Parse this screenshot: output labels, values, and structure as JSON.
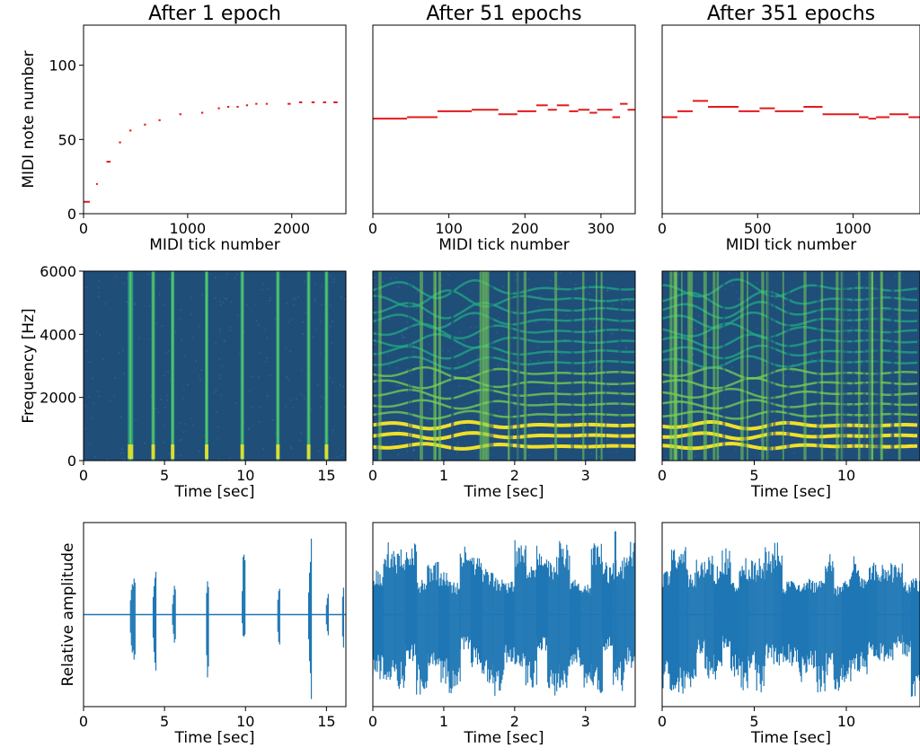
{
  "colors": {
    "note": "#e31a1c",
    "waveform": "#1f77b4",
    "spec_bg": "#1f4e79",
    "spec_mid": "#22a884",
    "spec_hi": "#fde725"
  },
  "chart_data": [
    {
      "type": "scatter",
      "panel": "midi-1-epoch",
      "title": "After 1 epoch",
      "xlabel": "MIDI tick number",
      "ylabel": "MIDI note number",
      "xlim": [
        0,
        2520
      ],
      "ylim": [
        0,
        127
      ],
      "xticks": [
        0,
        1000,
        2000
      ],
      "yticks": [
        0,
        50,
        100
      ],
      "notes": [
        [
          0,
          60,
          8
        ],
        [
          120,
          135,
          20
        ],
        [
          220,
          260,
          35
        ],
        [
          340,
          360,
          48
        ],
        [
          440,
          460,
          56
        ],
        [
          580,
          600,
          60
        ],
        [
          720,
          740,
          63
        ],
        [
          920,
          940,
          67
        ],
        [
          1130,
          1150,
          68
        ],
        [
          1290,
          1310,
          71
        ],
        [
          1380,
          1400,
          72
        ],
        [
          1470,
          1490,
          72
        ],
        [
          1560,
          1580,
          73
        ],
        [
          1650,
          1670,
          74
        ],
        [
          1750,
          1770,
          74
        ],
        [
          1960,
          1990,
          74
        ],
        [
          2070,
          2100,
          75
        ],
        [
          2190,
          2220,
          75
        ],
        [
          2300,
          2330,
          75
        ],
        [
          2400,
          2440,
          75
        ]
      ]
    },
    {
      "type": "scatter",
      "panel": "midi-51-epochs",
      "title": "After 51 epochs",
      "xlabel": "MIDI tick number",
      "ylabel": "",
      "xlim": [
        0,
        345
      ],
      "ylim": [
        0,
        127
      ],
      "xticks": [
        0,
        100,
        200,
        300
      ],
      "yticks": [],
      "notes": [
        [
          0,
          45,
          64
        ],
        [
          45,
          85,
          65
        ],
        [
          85,
          130,
          69
        ],
        [
          130,
          165,
          70
        ],
        [
          165,
          190,
          67
        ],
        [
          190,
          215,
          69
        ],
        [
          215,
          230,
          73
        ],
        [
          230,
          242,
          70
        ],
        [
          242,
          258,
          73
        ],
        [
          258,
          270,
          69
        ],
        [
          270,
          285,
          70
        ],
        [
          285,
          295,
          68
        ],
        [
          295,
          315,
          70
        ],
        [
          315,
          325,
          65
        ],
        [
          325,
          335,
          74
        ],
        [
          335,
          345,
          70
        ]
      ]
    },
    {
      "type": "scatter",
      "panel": "midi-351-epochs",
      "title": "After 351 epochs",
      "xlabel": "MIDI tick number",
      "ylabel": "",
      "xlim": [
        0,
        1350
      ],
      "ylim": [
        0,
        127
      ],
      "xticks": [
        0,
        500,
        1000
      ],
      "yticks": [],
      "notes": [
        [
          0,
          80,
          65
        ],
        [
          80,
          160,
          69
        ],
        [
          160,
          240,
          76
        ],
        [
          240,
          400,
          72
        ],
        [
          400,
          510,
          69
        ],
        [
          510,
          590,
          71
        ],
        [
          590,
          740,
          69
        ],
        [
          740,
          840,
          72
        ],
        [
          840,
          1030,
          67
        ],
        [
          1030,
          1080,
          65
        ],
        [
          1080,
          1120,
          64
        ],
        [
          1120,
          1190,
          65
        ],
        [
          1190,
          1290,
          67
        ],
        [
          1290,
          1350,
          65
        ]
      ]
    },
    {
      "type": "heatmap",
      "panel": "spectrogram-1-epoch",
      "xlabel": "Time [sec]",
      "ylabel": "Frequency [Hz]",
      "xlim": [
        0,
        16.2
      ],
      "ylim": [
        0,
        6000
      ],
      "xticks": [
        0,
        5,
        10,
        15
      ],
      "yticks": [
        0,
        2000,
        4000,
        6000
      ],
      "onsets": [
        2.9,
        4.3,
        5.5,
        7.6,
        9.8,
        12.0,
        13.9,
        15.0
      ]
    },
    {
      "type": "heatmap",
      "panel": "spectrogram-51-epochs",
      "xlabel": "Time [sec]",
      "ylabel": "",
      "xlim": [
        0,
        3.7
      ],
      "ylim": [
        0,
        6000
      ],
      "xticks": [
        0,
        1,
        2,
        3
      ],
      "yticks": []
    },
    {
      "type": "heatmap",
      "panel": "spectrogram-351-epochs",
      "xlabel": "Time [sec]",
      "ylabel": "",
      "xlim": [
        0,
        14
      ],
      "ylim": [
        0,
        6000
      ],
      "xticks": [
        0,
        5,
        10
      ],
      "yticks": []
    },
    {
      "type": "line",
      "panel": "waveform-1-epoch",
      "xlabel": "Time [sec]",
      "ylabel": "Relative amplitude",
      "xlim": [
        0,
        16.2
      ],
      "ylim": [
        -1.05,
        1.05
      ],
      "xticks": [
        0,
        5,
        10,
        15
      ],
      "bursts": [
        [
          2.9,
          0.3,
          0.48,
          -0.6
        ],
        [
          4.3,
          0.2,
          0.52,
          -0.68
        ],
        [
          5.5,
          0.2,
          0.43,
          -0.42
        ],
        [
          7.6,
          0.15,
          0.52,
          -0.98
        ],
        [
          9.8,
          0.2,
          0.95,
          -0.35
        ],
        [
          12.0,
          0.15,
          0.5,
          -0.58
        ],
        [
          13.9,
          0.2,
          0.9,
          -1.0
        ],
        [
          15.0,
          0.15,
          0.3,
          -0.3
        ],
        [
          16.0,
          0.1,
          0.45,
          -0.55
        ]
      ]
    },
    {
      "type": "line",
      "panel": "waveform-51-epochs",
      "xlabel": "Time [sec]",
      "ylabel": "",
      "xlim": [
        0,
        3.7
      ],
      "ylim": [
        -1.05,
        1.05
      ],
      "xticks": [
        0,
        1,
        2,
        3
      ]
    },
    {
      "type": "line",
      "panel": "waveform-351-epochs",
      "xlabel": "Time [sec]",
      "ylabel": "",
      "xlim": [
        0,
        14
      ],
      "ylim": [
        -1.05,
        1.05
      ],
      "xticks": [
        0,
        5,
        10
      ]
    }
  ]
}
